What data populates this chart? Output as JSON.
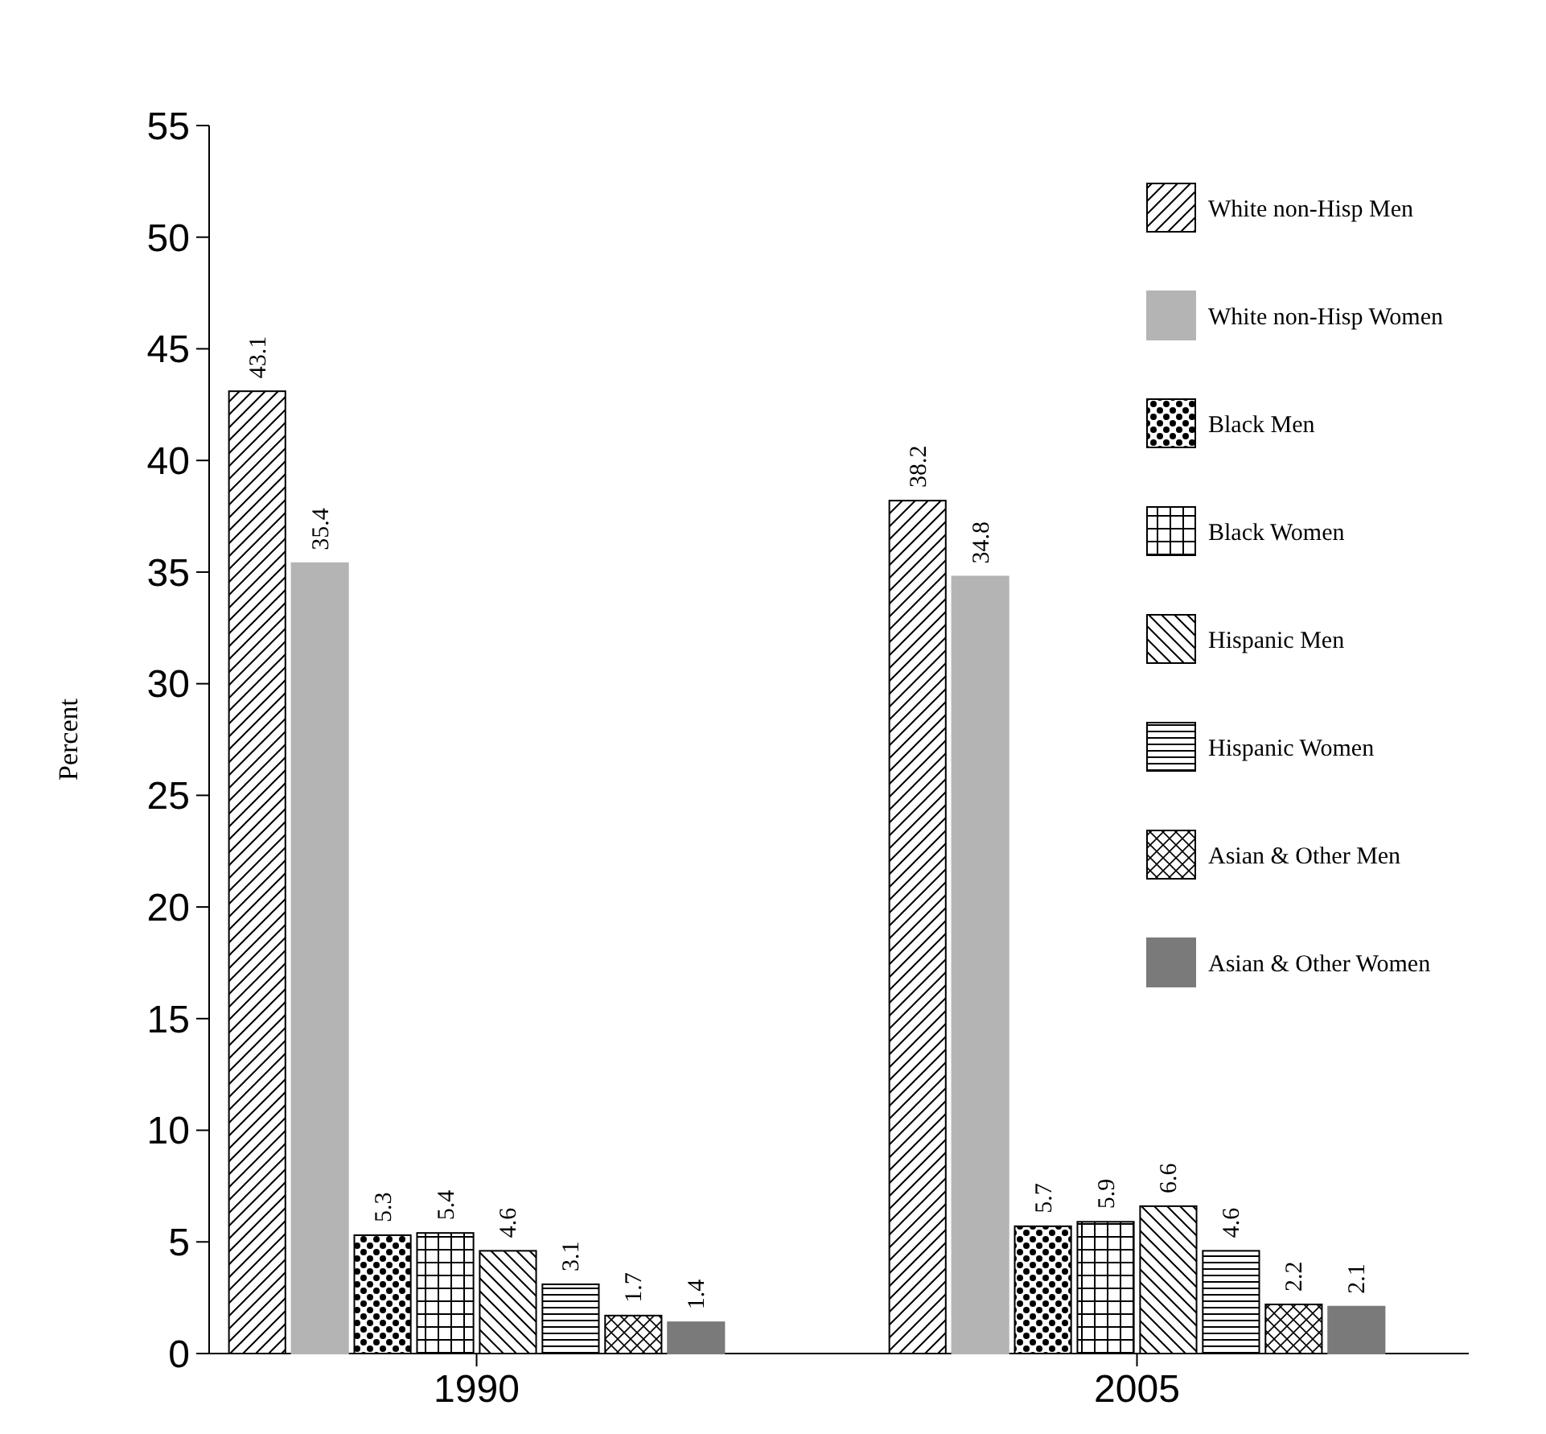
{
  "chart_data": {
    "type": "bar",
    "ylabel": "Percent",
    "categories": [
      "1990",
      "2005"
    ],
    "ylim": [
      0,
      55
    ],
    "yticks": [
      0,
      5,
      10,
      15,
      20,
      25,
      30,
      35,
      40,
      45,
      50,
      55
    ],
    "data_labels": true,
    "legend": "top right",
    "grid": false,
    "series": [
      {
        "name": "White non-Hisp Men",
        "color": "#000000",
        "values": [
          43.1,
          38.2
        ]
      },
      {
        "name": "White non-Hisp Women",
        "color": "#b4b4b4",
        "values": [
          35.4,
          34.8
        ]
      },
      {
        "name": "Black Men",
        "color": "#000000",
        "values": [
          5.3,
          5.7
        ]
      },
      {
        "name": "Black Women",
        "color": "#000000",
        "values": [
          5.4,
          5.9
        ]
      },
      {
        "name": "Hispanic Men",
        "color": "#000000",
        "values": [
          4.6,
          6.6
        ]
      },
      {
        "name": "Hispanic Women",
        "color": "#000000",
        "values": [
          3.1,
          4.6
        ]
      },
      {
        "name": "Asian & Other Men",
        "color": "#000000",
        "values": [
          1.7,
          2.2
        ]
      },
      {
        "name": "Asian & Other Women",
        "color": "#7a7a7a",
        "values": [
          1.4,
          2.1
        ]
      }
    ]
  }
}
